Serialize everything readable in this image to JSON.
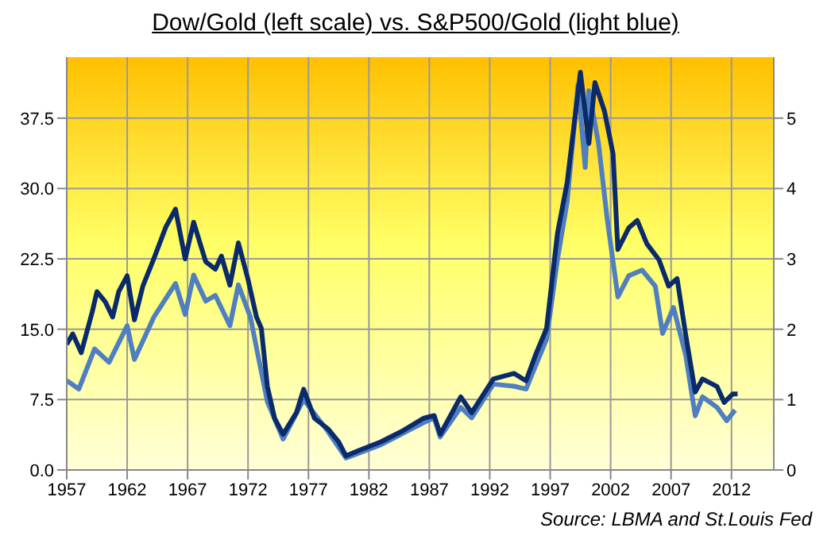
{
  "chart_data": {
    "type": "line",
    "title": "Dow/Gold (left scale) vs. S&P500/Gold (light blue)",
    "annotations": [
      "Source: LBMA and St.Louis Fed"
    ],
    "xlim": [
      1957,
      2015.5
    ],
    "xticks": [
      1957,
      1962,
      1967,
      1972,
      1977,
      1982,
      1987,
      1992,
      1997,
      2002,
      2007,
      2012
    ],
    "ylim": [
      0,
      44
    ],
    "yticks": [
      {
        "value": 0,
        "label": "0.0"
      },
      7.5,
      {
        "value": 15,
        "label": "15.0"
      },
      22.5,
      {
        "value": 30,
        "label": "30.0"
      },
      37.5
    ],
    "y2lim": [
      0,
      5.8667
    ],
    "y2ticks": [
      0,
      1,
      2,
      3,
      4,
      5
    ],
    "grid": true,
    "marker": "none",
    "line_style": "solid",
    "series": [
      {
        "color": "#0a2a6b",
        "x": [
          1957,
          1957.5,
          1958.2,
          1959.1,
          1959.5,
          1960.2,
          1960.8,
          1961.3,
          1962,
          1962.6,
          1963.3,
          1964.2,
          1965.2,
          1966,
          1966.8,
          1967.5,
          1968.5,
          1969.3,
          1969.8,
          1970.5,
          1971.2,
          1972,
          1972.7,
          1973.1,
          1973.6,
          1974.2,
          1974.9,
          1976,
          1976.6,
          1977.5,
          1978.6,
          1979.5,
          1980.1,
          1981.2,
          1983,
          1984.7,
          1986.5,
          1987.4,
          1987.9,
          1989.6,
          1990.5,
          1992.3,
          1994,
          1995,
          1995.8,
          1996.7,
          1997.6,
          1998.4,
          1999.5,
          2000.2,
          2000.7,
          2001.5,
          2002.2,
          2002.6,
          2003.5,
          2004.2,
          2005,
          2006,
          2006.8,
          2007.5,
          2008.2,
          2009,
          2009.6,
          2010.8,
          2011.4,
          2012.1,
          2012.5
        ],
        "values": [
          13.4,
          14.5,
          12.5,
          16.8,
          19.0,
          17.9,
          16.3,
          19.0,
          20.7,
          16.0,
          19.6,
          22.5,
          25.9,
          27.8,
          22.5,
          26.4,
          22.2,
          21.4,
          22.8,
          19.7,
          24.2,
          20.3,
          16.3,
          15.1,
          8.9,
          5.5,
          3.8,
          6.1,
          8.6,
          5.5,
          4.4,
          3.0,
          1.5,
          2.1,
          3.0,
          4.1,
          5.5,
          5.8,
          3.8,
          7.8,
          6.1,
          9.7,
          10.3,
          9.5,
          12.3,
          15.1,
          25.2,
          30.6,
          42.4,
          34.8,
          41.3,
          38.2,
          33.7,
          23.5,
          25.8,
          26.6,
          24.1,
          22.4,
          19.6,
          20.4,
          14.5,
          8.3,
          9.7,
          8.9,
          7.2,
          8.1,
          8.1
        ]
      },
      {
        "color": "#4f7fc0",
        "axis": "y2",
        "x": [
          1957,
          1958,
          1959.3,
          1960.5,
          1962,
          1962.6,
          1964.2,
          1966,
          1966.8,
          1967.5,
          1968.5,
          1969.3,
          1970.5,
          1971.2,
          1972.2,
          1972.8,
          1973.6,
          1974.9,
          1976.6,
          1978.6,
          1980.1,
          1983,
          1986.5,
          1987.4,
          1987.9,
          1989.6,
          1990.5,
          1992.3,
          1994,
          1995,
          1996.7,
          1997.6,
          1998.4,
          1999.3,
          1999.9,
          2000.2,
          2001,
          2001.7,
          2002.6,
          2003.5,
          2004.6,
          2005.7,
          2006.3,
          2007.2,
          2008.2,
          2009,
          2009.6,
          2010.8,
          2011.6,
          2012.3
        ],
        "values": [
          1.27,
          1.15,
          1.72,
          1.53,
          2.05,
          1.57,
          2.17,
          2.65,
          2.21,
          2.77,
          2.4,
          2.48,
          2.05,
          2.63,
          2.17,
          1.65,
          0.97,
          0.44,
          1.0,
          0.55,
          0.17,
          0.36,
          0.67,
          0.74,
          0.47,
          0.89,
          0.74,
          1.22,
          1.19,
          1.15,
          1.86,
          2.99,
          3.81,
          5.47,
          4.3,
          5.39,
          4.64,
          3.59,
          2.46,
          2.76,
          2.84,
          2.61,
          1.94,
          2.31,
          1.64,
          0.77,
          1.04,
          0.89,
          0.7,
          0.85
        ]
      }
    ]
  }
}
